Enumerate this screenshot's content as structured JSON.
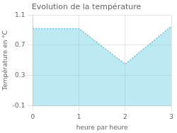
{
  "chart_data": {
    "type": "area",
    "title": "Evolution de la température",
    "x": [
      0,
      1,
      2,
      3
    ],
    "values": [
      0.92,
      0.92,
      0.45,
      0.95
    ],
    "color": "#5bc8df",
    "line_style": "dotted",
    "xlabel": "heure par heure",
    "ylabel": "Température en °C",
    "xlim": [
      0,
      3
    ],
    "ylim": [
      -0.1,
      1.1
    ],
    "xticks": [
      0,
      1,
      2,
      3
    ],
    "yticks": [
      -0.1,
      0.3,
      0.7,
      1.1
    ],
    "grid": true
  }
}
